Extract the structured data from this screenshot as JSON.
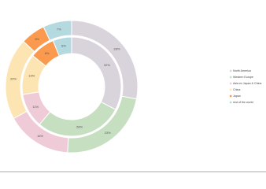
{
  "chart_data": {
    "type": "nested-donut",
    "series": [
      {
        "name": "North America",
        "color": "#d9d4dc"
      },
      {
        "name": "Western Europe",
        "color": "#c6dfc1"
      },
      {
        "name": "Asia ex Japan & China",
        "color": "#efcbd8"
      },
      {
        "name": "China",
        "color": "#fde4b3"
      },
      {
        "name": "Japan",
        "color": "#fb9a4f"
      },
      {
        "name": "rest of the world",
        "color": "#b4dadf"
      }
    ],
    "rings": [
      {
        "values": [
          28,
          23,
          16,
          20,
          6,
          7
        ],
        "value_labels": [
          "28%",
          "23%",
          "16%",
          "20%",
          "6%",
          "7%"
        ]
      },
      {
        "values": [
          32,
          28,
          11,
          13,
          8,
          6
        ],
        "value_labels": [
          "32%",
          "28%",
          "11%",
          "13%",
          "8%",
          "6%"
        ]
      }
    ]
  }
}
